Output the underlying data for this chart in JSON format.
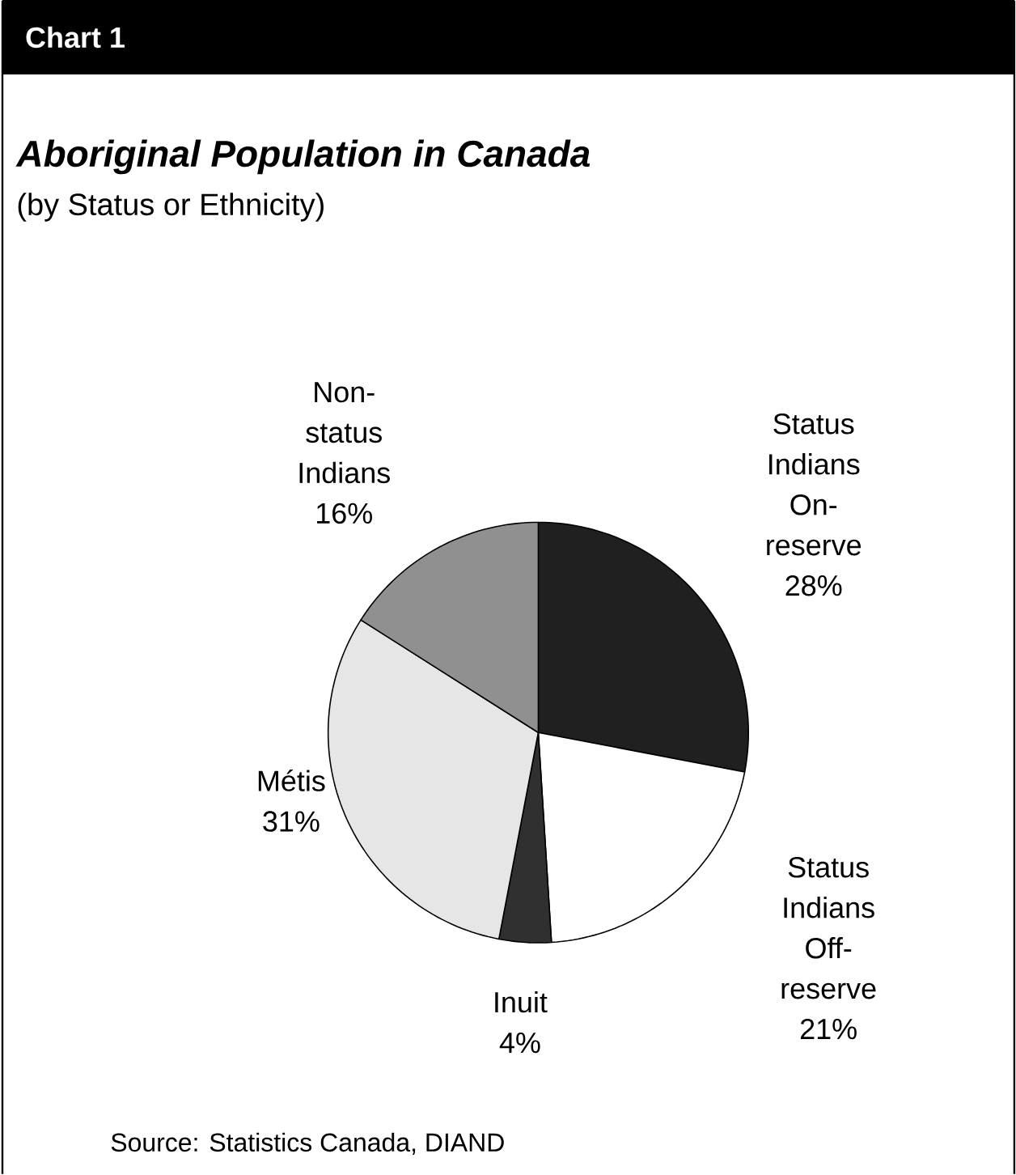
{
  "chart_data": {
    "type": "pie",
    "title": "Aboriginal Population in Canada",
    "subtitle": "(by Status or Ethnicity)",
    "annotations": [
      "Chart 1",
      "Source: Statistics Canada, DIAND"
    ],
    "categories": [
      "Status Indians On-reserve",
      "Status Indians Off-reserve",
      "Inuit",
      "Métis",
      "Non-status Indians"
    ],
    "values": [
      28,
      21,
      4,
      31,
      16
    ],
    "value_labels": [
      "28%",
      "21%",
      "4%",
      "31%",
      "16%"
    ],
    "colors": [
      "#202020",
      "#ffffff",
      "#303030",
      "#e6e6e6",
      "#909090"
    ]
  }
}
